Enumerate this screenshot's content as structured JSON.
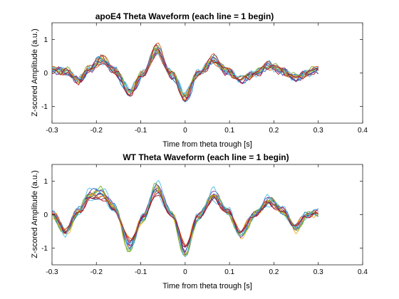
{
  "chart_data": [
    {
      "type": "line",
      "title": "apoE4 Theta Waveform (each line = 1 begin)",
      "xlabel": "Time from theta trough [s]",
      "ylabel": "Z-scored Amplitude (a.u.)",
      "xlim": [
        -0.3,
        0.4
      ],
      "ylim": [
        -1.5,
        1.5
      ],
      "xticks": [
        "-0.3",
        "-0.2",
        "-0.1",
        "0",
        "0.1",
        "0.2",
        "0.3",
        "0.4"
      ],
      "yticks": [
        "-1",
        "0",
        "1"
      ],
      "x_range": [
        -0.3,
        0.3
      ],
      "grid": false,
      "n_lines": 14,
      "mean_waveform": {
        "x": [
          -0.3,
          -0.27,
          -0.24,
          -0.215,
          -0.19,
          -0.16,
          -0.125,
          -0.095,
          -0.065,
          -0.03,
          0.0,
          0.03,
          0.065,
          0.095,
          0.125,
          0.16,
          0.19,
          0.22,
          0.25,
          0.275,
          0.3
        ],
        "y": [
          0.08,
          0.05,
          -0.22,
          0.1,
          0.4,
          0.08,
          -0.58,
          -0.05,
          0.68,
          -0.05,
          -0.72,
          0.0,
          0.38,
          0.05,
          -0.2,
          0.0,
          0.22,
          0.05,
          -0.15,
          0.0,
          0.1
        ]
      }
    },
    {
      "type": "line",
      "title": "WT Theta Waveform (each line = 1 begin)",
      "xlabel": "Time from theta trough [s]",
      "ylabel": "Z-scored Amplitude (a.u.)",
      "xlim": [
        -0.3,
        0.4
      ],
      "ylim": [
        -1.5,
        1.5
      ],
      "xticks": [
        "-0.3",
        "-0.2",
        "-0.1",
        "0",
        "0.1",
        "0.2",
        "0.3",
        "0.4"
      ],
      "yticks": [
        "-1",
        "0",
        "1"
      ],
      "x_range": [
        -0.3,
        0.3
      ],
      "grid": false,
      "n_lines": 14,
      "mean_waveform": {
        "x": [
          -0.3,
          -0.27,
          -0.24,
          -0.215,
          -0.19,
          -0.16,
          -0.125,
          -0.095,
          -0.065,
          -0.03,
          0.0,
          0.03,
          0.065,
          0.095,
          0.125,
          0.16,
          0.19,
          0.22,
          0.25,
          0.275,
          0.3
        ],
        "y": [
          0.02,
          -0.5,
          0.1,
          0.55,
          0.62,
          0.2,
          -0.9,
          -0.1,
          0.75,
          0.0,
          -1.05,
          -0.05,
          0.55,
          0.1,
          -0.55,
          0.05,
          0.4,
          0.1,
          -0.38,
          0.0,
          0.05
        ]
      }
    }
  ],
  "series_colors": [
    "#0072BD",
    "#D95319",
    "#EDB120",
    "#7E2F8E",
    "#77AC30",
    "#4DBEEE",
    "#A2142F"
  ]
}
